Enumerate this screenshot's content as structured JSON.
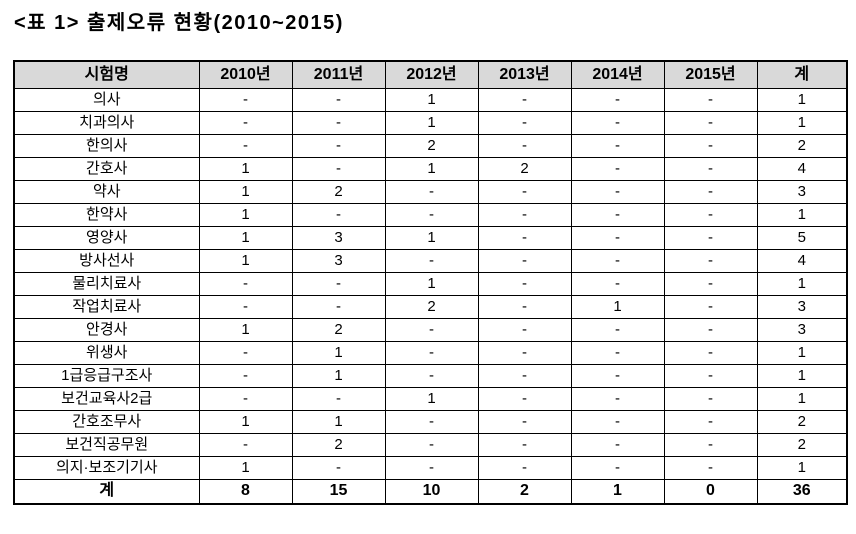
{
  "title": "<표 1> 출제오류 현황(2010~2015)",
  "table": {
    "headers": [
      "시험명",
      "2010년",
      "2011년",
      "2012년",
      "2013년",
      "2014년",
      "2015년",
      "계"
    ],
    "rows": [
      {
        "name": "의사",
        "values": [
          "-",
          "-",
          "1",
          "-",
          "-",
          "-",
          "1"
        ]
      },
      {
        "name": "치과의사",
        "values": [
          "-",
          "-",
          "1",
          "-",
          "-",
          "-",
          "1"
        ]
      },
      {
        "name": "한의사",
        "values": [
          "-",
          "-",
          "2",
          "-",
          "-",
          "-",
          "2"
        ]
      },
      {
        "name": "간호사",
        "values": [
          "1",
          "-",
          "1",
          "2",
          "-",
          "-",
          "4"
        ]
      },
      {
        "name": "약사",
        "values": [
          "1",
          "2",
          "-",
          "-",
          "-",
          "-",
          "3"
        ]
      },
      {
        "name": "한약사",
        "values": [
          "1",
          "-",
          "-",
          "-",
          "-",
          "-",
          "1"
        ]
      },
      {
        "name": "영양사",
        "values": [
          "1",
          "3",
          "1",
          "-",
          "-",
          "-",
          "5"
        ]
      },
      {
        "name": "방사선사",
        "values": [
          "1",
          "3",
          "-",
          "-",
          "-",
          "-",
          "4"
        ]
      },
      {
        "name": "물리치료사",
        "values": [
          "-",
          "-",
          "1",
          "-",
          "-",
          "-",
          "1"
        ]
      },
      {
        "name": "작업치료사",
        "values": [
          "-",
          "-",
          "2",
          "-",
          "1",
          "-",
          "3"
        ]
      },
      {
        "name": "안경사",
        "values": [
          "1",
          "2",
          "-",
          "-",
          "-",
          "-",
          "3"
        ]
      },
      {
        "name": "위생사",
        "values": [
          "-",
          "1",
          "-",
          "-",
          "-",
          "-",
          "1"
        ]
      },
      {
        "name": "1급응급구조사",
        "values": [
          "-",
          "1",
          "-",
          "-",
          "-",
          "-",
          "1"
        ]
      },
      {
        "name": "보건교육사2급",
        "values": [
          "-",
          "-",
          "1",
          "-",
          "-",
          "-",
          "1"
        ]
      },
      {
        "name": "간호조무사",
        "values": [
          "1",
          "1",
          "-",
          "-",
          "-",
          "-",
          "2"
        ]
      },
      {
        "name": "보건직공무원",
        "values": [
          "-",
          "2",
          "-",
          "-",
          "-",
          "-",
          "2"
        ]
      },
      {
        "name": "의지·보조기기사",
        "values": [
          "1",
          "-",
          "-",
          "-",
          "-",
          "-",
          "1"
        ]
      }
    ],
    "total_row": {
      "name": "계",
      "values": [
        "8",
        "15",
        "10",
        "2",
        "1",
        "0",
        "36"
      ]
    }
  },
  "colors": {
    "header_bg": "#d9d9d9",
    "border": "#000000",
    "text": "#000000",
    "background": "#ffffff"
  }
}
